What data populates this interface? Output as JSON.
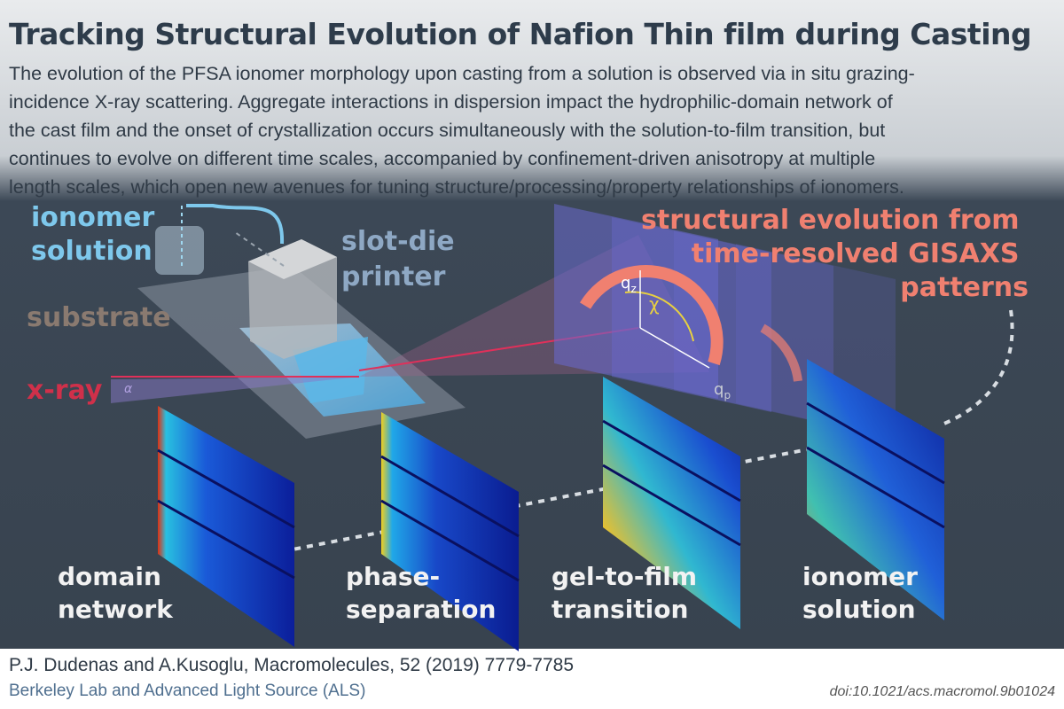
{
  "header": {
    "title": "Tracking Structural Evolution of Nafion Thin film during Casting",
    "summary_lines": [
      "The evolution of the PFSA ionomer morphology upon casting from a solution is observed via in situ grazing-",
      "incidence X-ray scattering. Aggregate interactions in dispersion impact the hydrophilic-domain network of",
      "the cast film and the onset of crystallization occurs simultaneously with the solution-to-film transition, but",
      "continues to evolve on different time scales, accompanied by confinement-driven anisotropy at multiple",
      "length scales, which open new avenues for tuning structure/processing/property relationships of ionomers."
    ]
  },
  "diagram": {
    "ionomer_solution": [
      "ionomer",
      "solution"
    ],
    "slot_die_printer": [
      "slot-die",
      "printer"
    ],
    "substrate": "substrate",
    "x_ray": "x-ray",
    "angle": "α",
    "chi": "χ",
    "qz": {
      "base": "q",
      "sub": "z"
    },
    "qp": {
      "base": "q",
      "sub": "p"
    },
    "evolution_label": [
      "structural evolution from",
      "time-resolved GISAXS",
      "patterns"
    ]
  },
  "stages": [
    [
      "domain",
      "network"
    ],
    [
      "phase-",
      "separation"
    ],
    [
      "gel-to-film",
      "transition"
    ],
    [
      "ionomer",
      "solution"
    ]
  ],
  "footer": {
    "citation": "P.J. Dudenas and A.Kusoglu, Macromolecules, 52 (2019) 7779-7785",
    "affiliation": "Berkeley Lab and Advanced Light Source (ALS)",
    "doi": "doi:10.1021/acs.macromol.9b01024"
  }
}
